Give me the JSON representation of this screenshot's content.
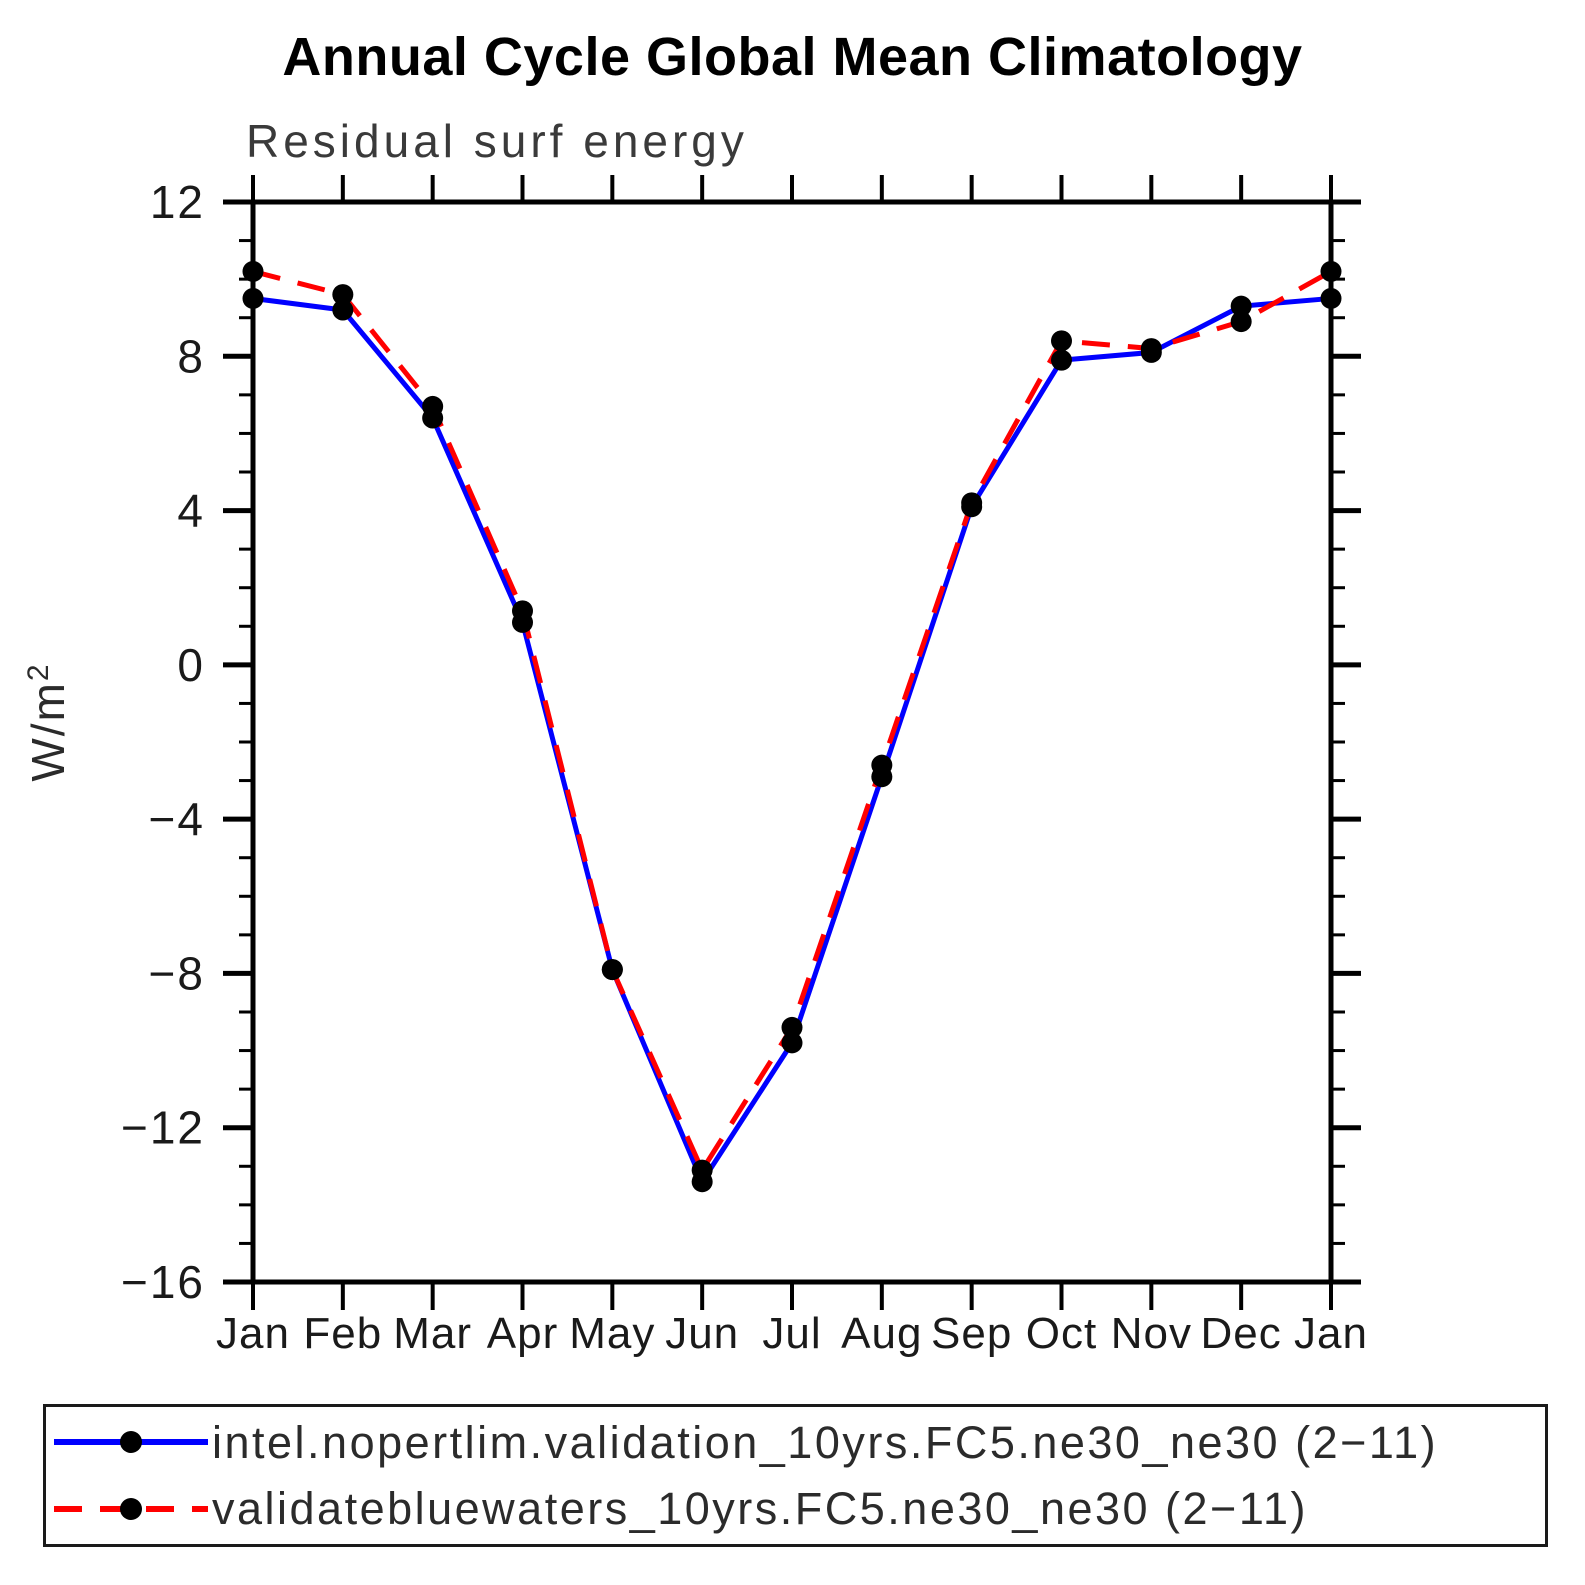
{
  "header": {
    "title": "Annual Cycle Global Mean Climatology",
    "subtitle": "Residual surf energy"
  },
  "chart_data": {
    "type": "line",
    "title": "Annual Cycle Global Mean Climatology",
    "subtitle": "Residual surf energy",
    "ylabel": "W/m²",
    "ylabel_base": "W/m",
    "ylabel_sup": "2",
    "x_categories": [
      "Jan",
      "Feb",
      "Mar",
      "Apr",
      "May",
      "Jun",
      "Jul",
      "Aug",
      "Sep",
      "Oct",
      "Nov",
      "Dec",
      "Jan"
    ],
    "ylim": [
      -16,
      12
    ],
    "ytick_major": [
      12,
      8,
      4,
      0,
      -4,
      -8,
      -12,
      -16
    ],
    "ytick_minor_step": 1,
    "grid": "off",
    "legend_position": "bottom",
    "marker": {
      "shape": "circle",
      "color": "#000000",
      "radius": 10.5
    },
    "series": [
      {
        "name": "intel.nopertlim.validation_10yrs.FC5.ne30_ne30 (2−11)",
        "color": "#0000ff",
        "style": "solid",
        "values": [
          9.5,
          9.2,
          6.4,
          1.1,
          -7.9,
          -13.4,
          -9.8,
          -2.9,
          4.1,
          7.9,
          8.1,
          9.3,
          9.5
        ]
      },
      {
        "name": "validatebluewaters_10yrs.FC5.ne30_ne30 (2−11)",
        "color": "#ff0000",
        "style": "dashed",
        "values": [
          10.2,
          9.6,
          6.7,
          1.4,
          -7.9,
          -13.1,
          -9.4,
          -2.6,
          4.2,
          8.4,
          8.2,
          8.9,
          10.2
        ]
      }
    ]
  }
}
